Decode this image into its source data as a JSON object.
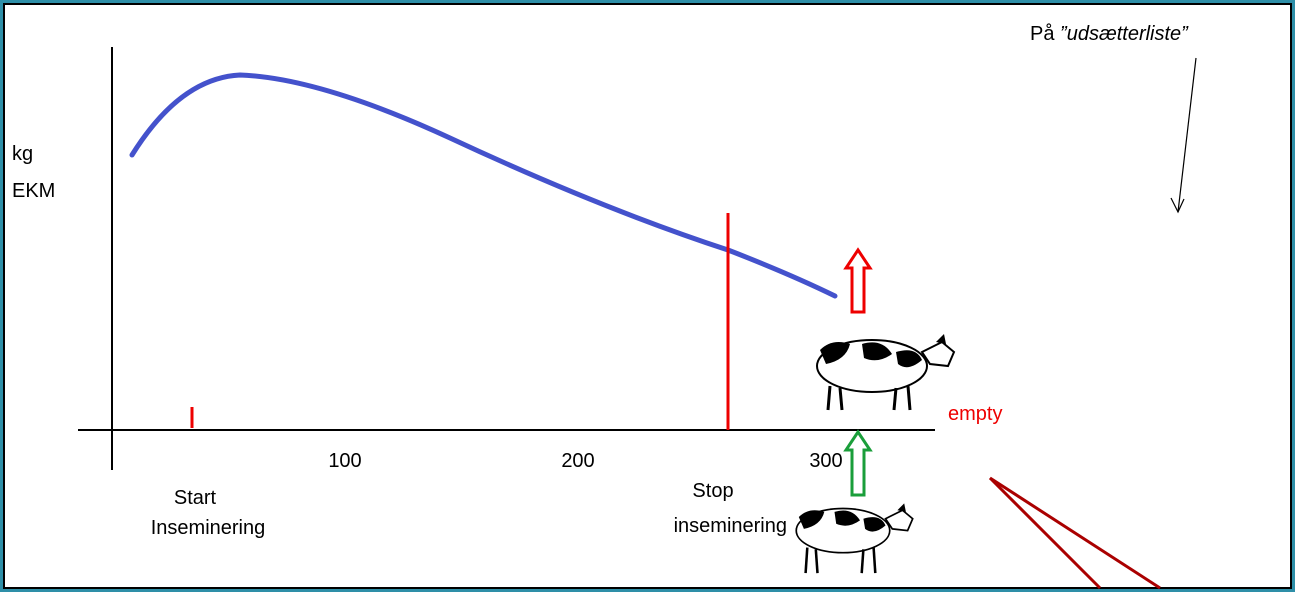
{
  "y_label": {
    "line1": "kg",
    "line2": "EKM"
  },
  "x_tick_labels": [
    "100",
    "200",
    "300"
  ],
  "start_label": {
    "line1": "Start",
    "line2": "Inseminering"
  },
  "stop_label": {
    "line1": "Stop",
    "line2": "inseminering"
  },
  "empty_label": "empty",
  "cull_list": {
    "prefix": "På",
    "term": "”udsætterliste”"
  }
}
